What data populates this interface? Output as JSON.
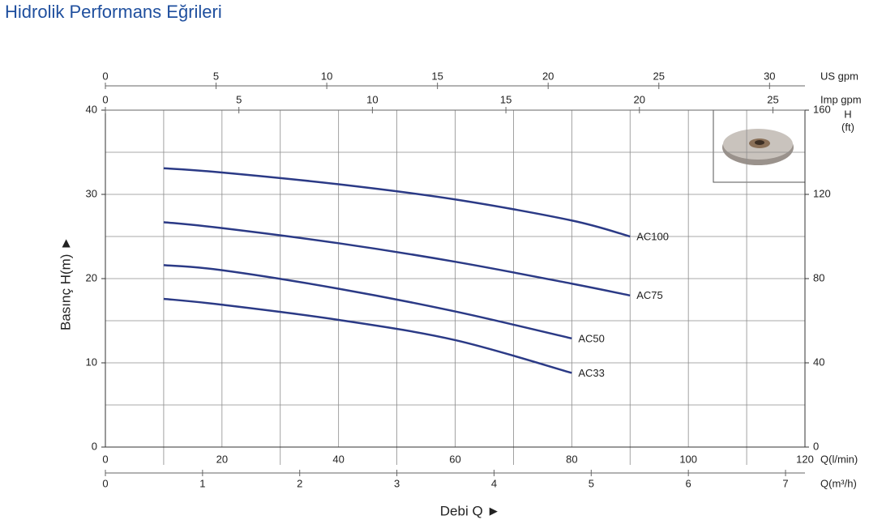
{
  "chart_data": {
    "type": "line",
    "title": "Hidrolik Performans Eğrileri",
    "x_label": "Debi Q ►",
    "y_label": "Basınç H(m) ►",
    "x_unit": "Q(l/min)",
    "x": [
      10,
      20,
      40,
      60,
      80,
      90
    ],
    "series": [
      {
        "name": "AC100",
        "color": "#2b3a86",
        "values": [
          33.1,
          32.6,
          31.2,
          29.4,
          26.9,
          25.0
        ]
      },
      {
        "name": "AC75",
        "color": "#2b3a86",
        "values": [
          26.7,
          26.0,
          24.2,
          22.0,
          19.4,
          18.0
        ]
      },
      {
        "name": "AC50",
        "color": "#2b3a86",
        "values": [
          21.6,
          21.0,
          18.8,
          16.1,
          12.9,
          null
        ]
      },
      {
        "name": "AC33",
        "color": "#2b3a86",
        "values": [
          17.6,
          16.9,
          15.1,
          12.7,
          8.8,
          null
        ]
      }
    ],
    "xlim": [
      0,
      120
    ],
    "xticks": [
      0,
      20,
      40,
      60,
      80,
      100,
      120
    ],
    "xminorticks": [
      10,
      30,
      50,
      70,
      90,
      110
    ],
    "ylim": [
      0,
      40
    ],
    "yticks": [
      0,
      10,
      20,
      30,
      40
    ],
    "yminorticks": [
      5,
      15,
      25,
      35
    ],
    "y2lim": [
      0,
      160
    ],
    "y2ticks": [
      0,
      40,
      80,
      120,
      160
    ],
    "y2_label": "H",
    "y2_unit": "(ft)",
    "extra_x_axes": [
      {
        "label": "US gpm",
        "lim": [
          0,
          31.6
        ],
        "ticks": [
          0,
          5,
          10,
          15,
          20,
          25,
          30
        ]
      },
      {
        "label": "Imp gpm",
        "lim": [
          0,
          26.2
        ],
        "ticks": [
          0,
          5,
          10,
          15,
          20,
          25
        ]
      },
      {
        "label": "Q(m³/h)",
        "lim": [
          0,
          7.2
        ],
        "ticks": [
          0,
          1,
          2,
          3,
          4,
          5,
          6,
          7
        ]
      }
    ],
    "grid": true
  }
}
